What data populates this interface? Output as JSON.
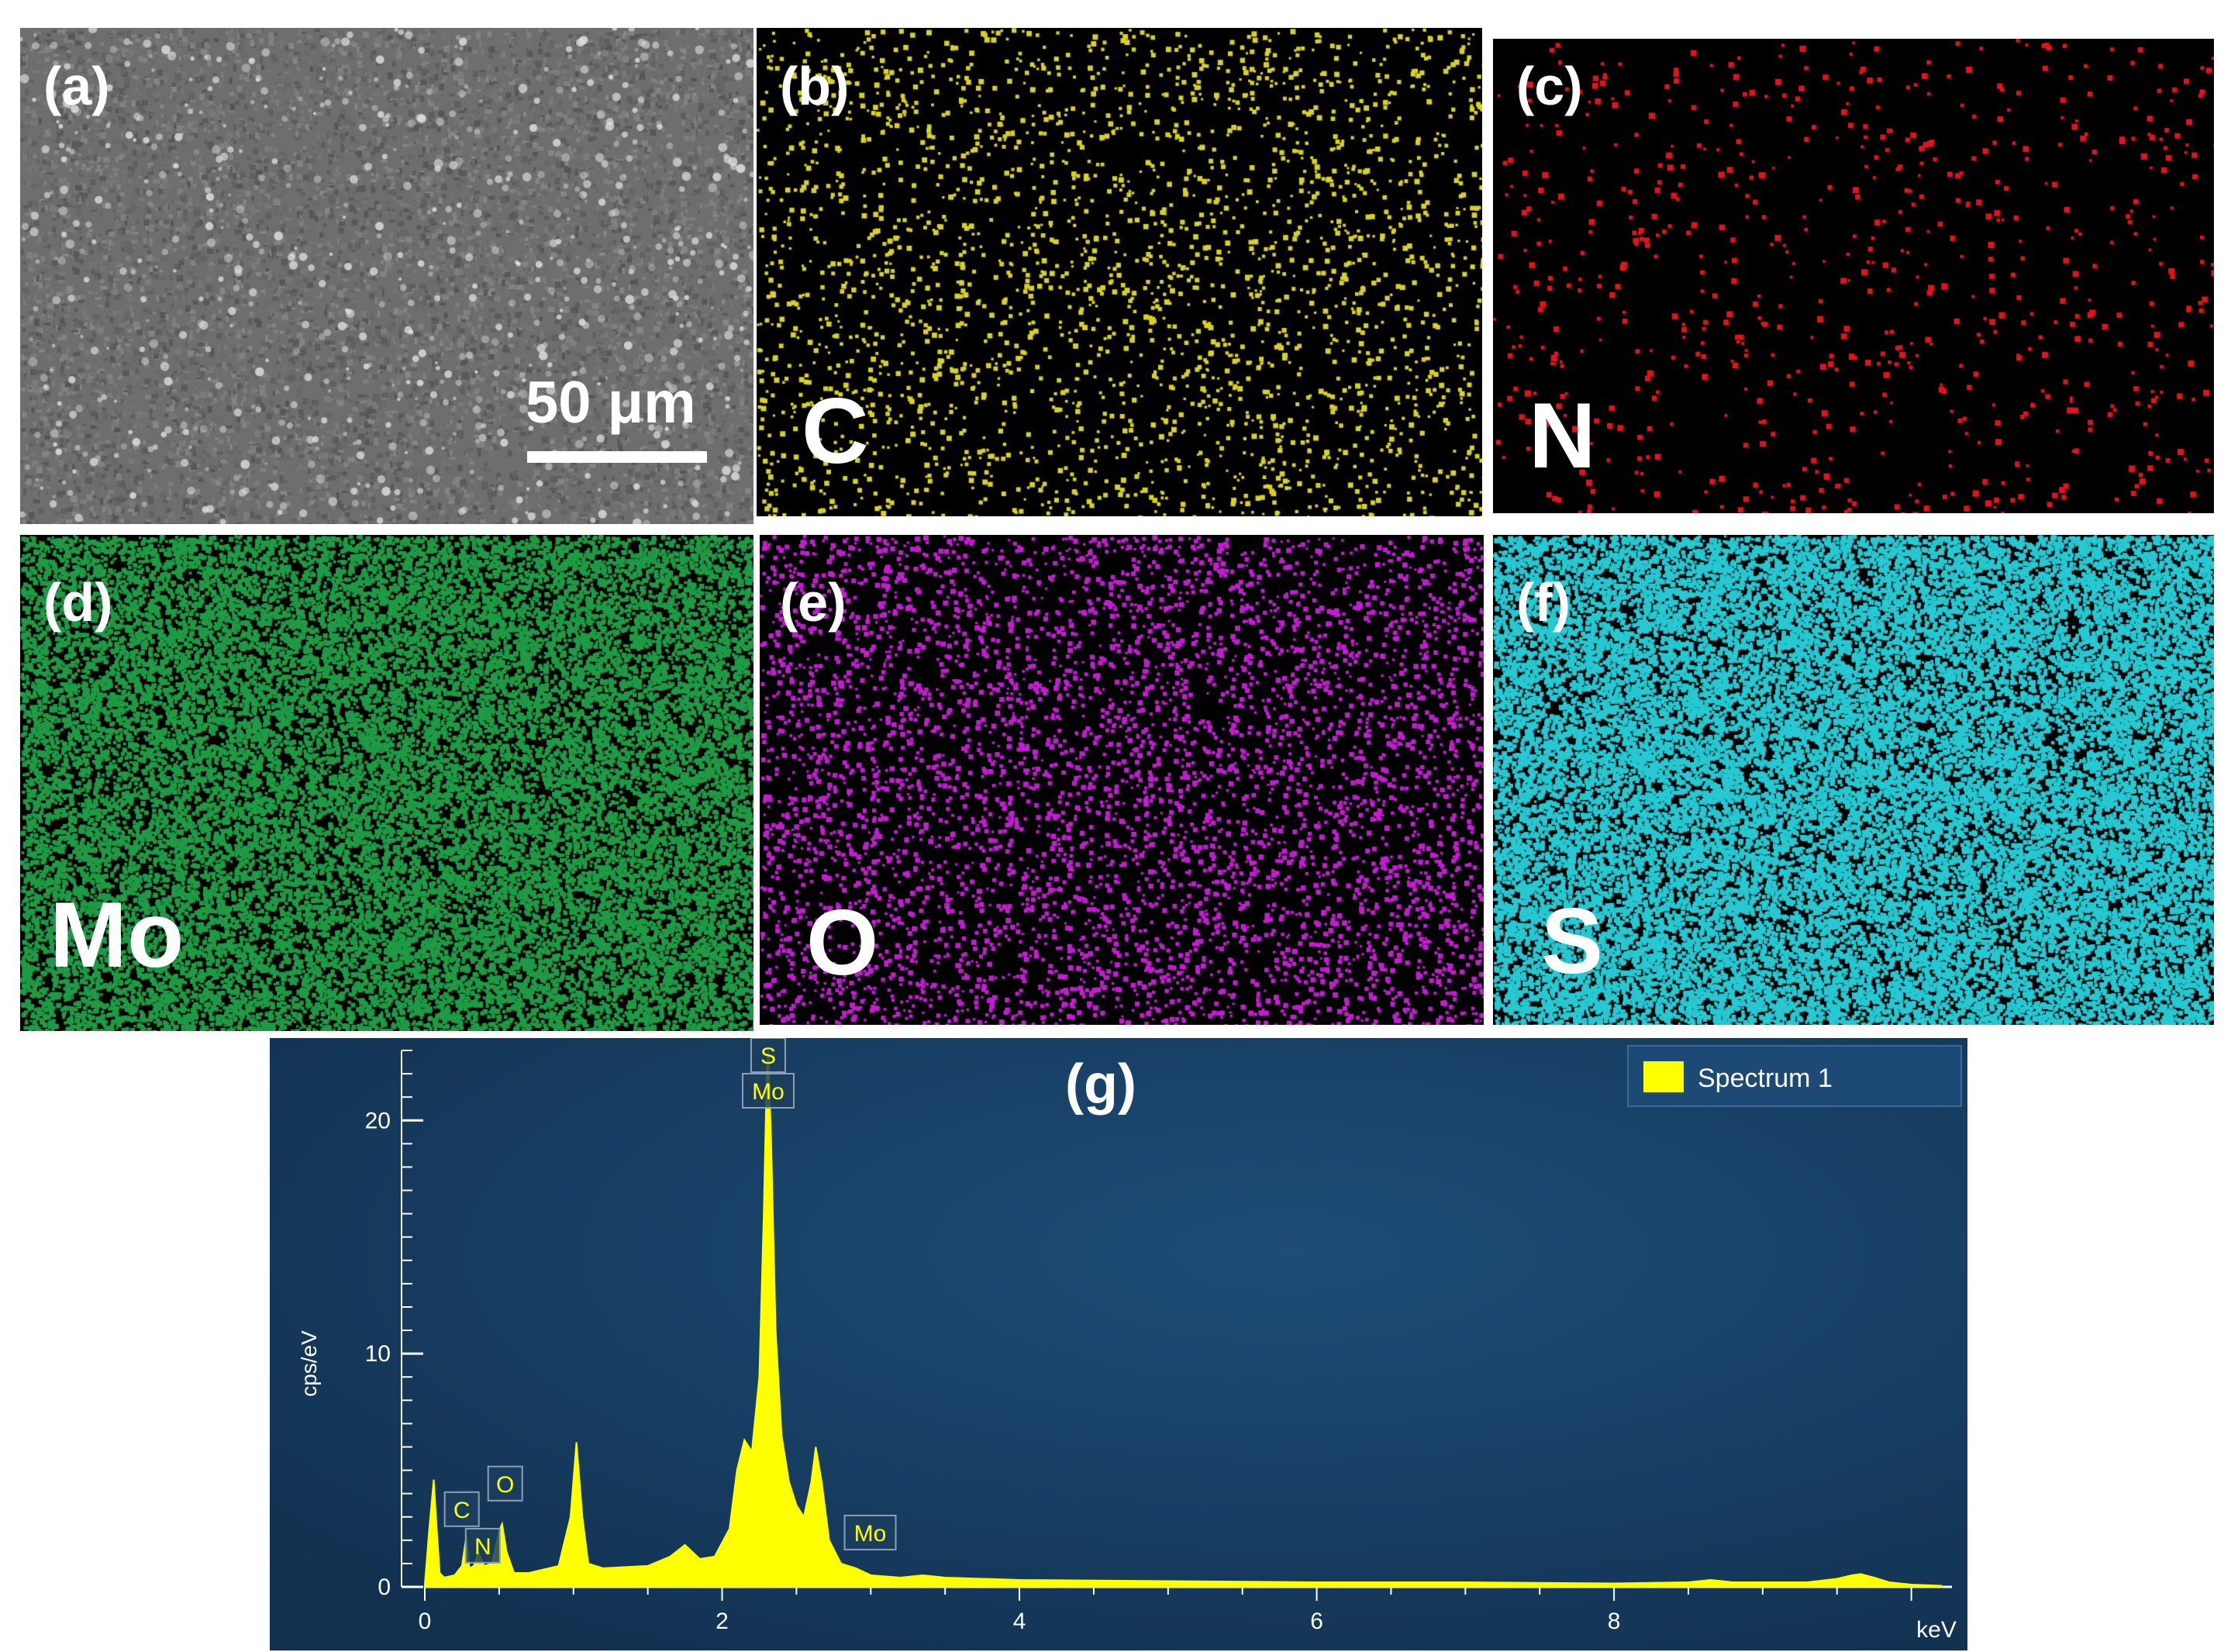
{
  "sem_panel": {
    "label": "(a)",
    "scale_bar": "50 μm",
    "color": "#6e6e6e"
  },
  "maps": [
    {
      "id": "b",
      "label": "(b)",
      "element": "C",
      "color": "#d9d21e"
    },
    {
      "id": "c",
      "label": "(c)",
      "element": "N",
      "color": "#e0141a"
    },
    {
      "id": "d",
      "label": "(d)",
      "element": "Mo",
      "color": "#1f9a45"
    },
    {
      "id": "e",
      "label": "(e)",
      "element": "O",
      "color": "#c21ed0"
    },
    {
      "id": "f",
      "label": "(f)",
      "element": "S",
      "color": "#27c8d2"
    }
  ],
  "spectrum_panel": {
    "label": "(g)",
    "background": "#17395f",
    "fill_color": "#ffff00"
  },
  "chart_data": {
    "type": "area",
    "title": "(g)",
    "xlabel": "keV",
    "ylabel": "cps/eV",
    "xlim": [
      0,
      10.2
    ],
    "ylim": [
      0,
      23
    ],
    "x_ticks": [
      "0",
      "2",
      "4",
      "6",
      "8"
    ],
    "y_ticks": [
      "0",
      "10",
      "20"
    ],
    "legend": {
      "position": "top-right",
      "entries": [
        "Spectrum 1"
      ]
    },
    "series": [
      {
        "name": "Spectrum 1",
        "x": [
          0.0,
          0.03,
          0.06,
          0.08,
          0.1,
          0.13,
          0.2,
          0.25,
          0.28,
          0.3,
          0.33,
          0.36,
          0.4,
          0.45,
          0.5,
          0.52,
          0.55,
          0.6,
          0.7,
          0.9,
          0.98,
          1.02,
          1.06,
          1.1,
          1.2,
          1.5,
          1.65,
          1.75,
          1.85,
          1.95,
          2.05,
          2.1,
          2.15,
          2.2,
          2.25,
          2.28,
          2.3,
          2.31,
          2.33,
          2.36,
          2.4,
          2.45,
          2.5,
          2.55,
          2.6,
          2.63,
          2.67,
          2.72,
          2.8,
          2.9,
          3.0,
          3.2,
          3.35,
          3.5,
          4.0,
          5.0,
          6.0,
          7.0,
          8.0,
          8.5,
          8.65,
          8.8,
          9.3,
          9.5,
          9.6,
          9.66,
          9.75,
          9.85,
          10.0,
          10.2
        ],
        "y": [
          0.1,
          2.5,
          4.6,
          2.5,
          0.6,
          0.4,
          0.5,
          0.9,
          2.2,
          0.8,
          0.9,
          1.5,
          0.9,
          1.0,
          2.4,
          2.7,
          1.5,
          0.6,
          0.6,
          0.9,
          3.0,
          6.2,
          3.0,
          1.0,
          0.8,
          0.9,
          1.3,
          1.8,
          1.2,
          1.3,
          2.5,
          5.0,
          6.3,
          5.8,
          9.0,
          16.0,
          22.0,
          23.0,
          19.0,
          11.0,
          6.5,
          4.5,
          3.5,
          3.0,
          4.5,
          6.0,
          4.5,
          2.0,
          1.0,
          0.8,
          0.5,
          0.4,
          0.5,
          0.4,
          0.3,
          0.25,
          0.2,
          0.2,
          0.15,
          0.2,
          0.3,
          0.2,
          0.2,
          0.35,
          0.5,
          0.55,
          0.4,
          0.2,
          0.1,
          0.05
        ]
      }
    ],
    "peak_labels": [
      {
        "text": "C",
        "x": 0.28,
        "y": 2.2
      },
      {
        "text": "N",
        "x": 0.39,
        "y": 1.5
      },
      {
        "text": "O",
        "x": 0.52,
        "y": 2.7
      },
      {
        "text": "S",
        "x": 2.31,
        "y": 23.0
      },
      {
        "text": "Mo",
        "x": 2.31,
        "y": 23.0
      },
      {
        "text": "Mo",
        "x": 2.85,
        "y": 1.0
      }
    ]
  }
}
